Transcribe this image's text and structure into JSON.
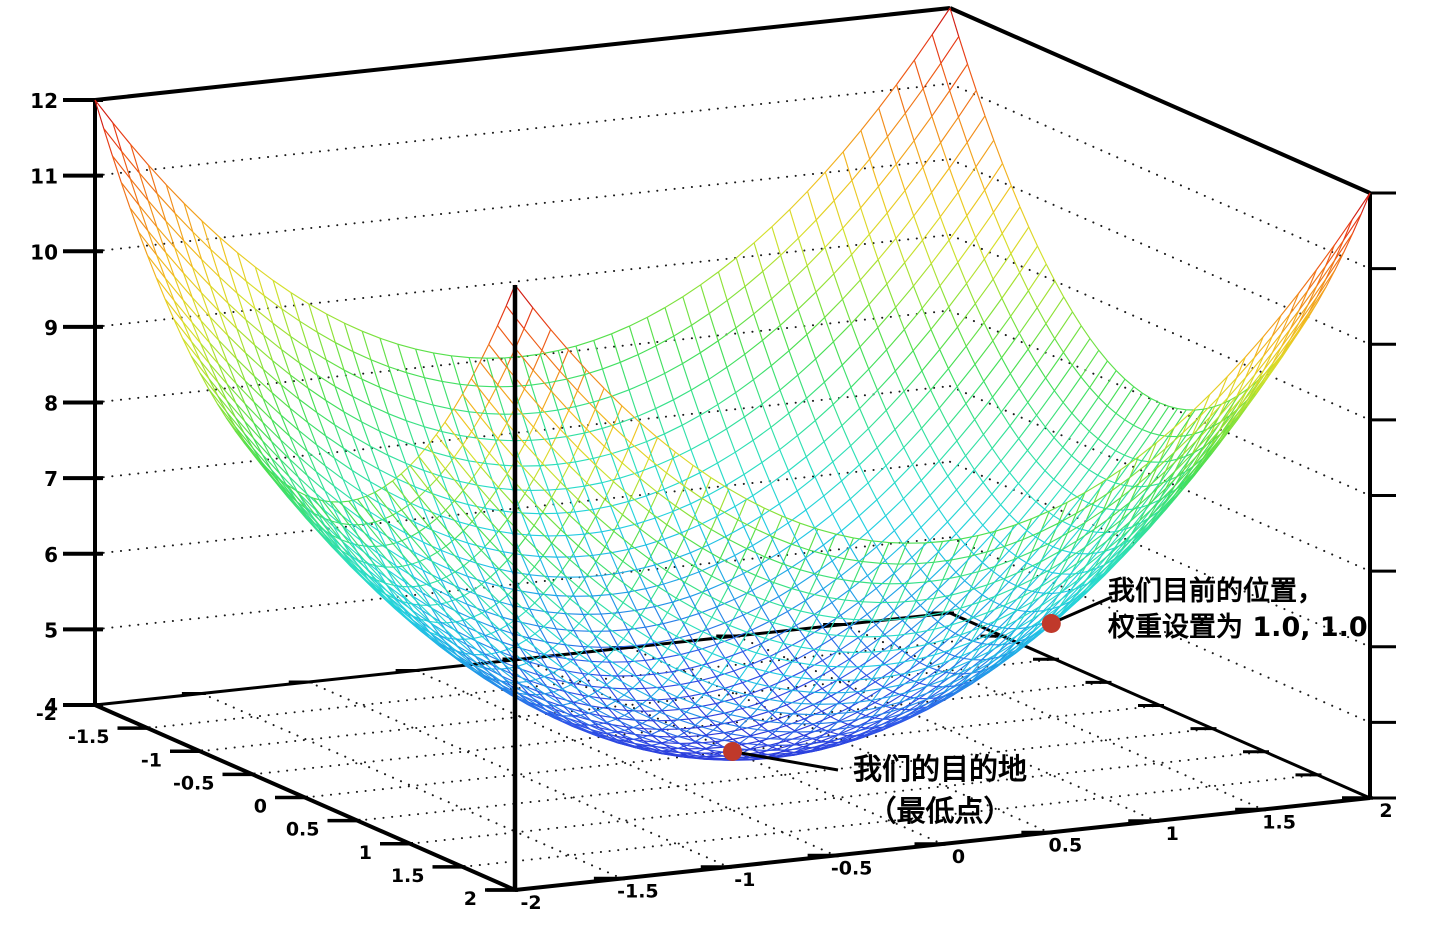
{
  "figure": {
    "background": "#ffffff"
  },
  "chart_data": {
    "type": "3d_surface_wireframe",
    "title": "",
    "z_function": "z = x^2 + y^2 + 4",
    "z_function_coeffs": {
      "x2": 1,
      "y2": 1,
      "c": 4
    },
    "x_range": [
      -2,
      2
    ],
    "y_range": [
      -2,
      2
    ],
    "z_range": [
      4,
      12
    ],
    "x_tick_values": [
      -2,
      -1.5,
      -1,
      -0.5,
      0,
      0.5,
      1,
      1.5,
      2
    ],
    "x_tick_labels": [
      "-2",
      "-1.5",
      "-1",
      "-0.5",
      "0",
      "0.5",
      "1",
      "1.5",
      "2"
    ],
    "y_tick_values": [
      -2,
      -1.5,
      -1,
      -0.5,
      0,
      0.5,
      1,
      1.5,
      2
    ],
    "y_tick_labels": [
      "-2",
      "-1.5",
      "-1",
      "-0.5",
      "0",
      "0.5",
      "1",
      "1.5",
      "2"
    ],
    "z_tick_values": [
      4,
      5,
      6,
      7,
      8,
      9,
      10,
      11,
      12
    ],
    "z_tick_labels": [
      "4",
      "5",
      "6",
      "7",
      "8",
      "9",
      "10",
      "11",
      "12"
    ],
    "mesh_divisions": 48,
    "floor_grid_step": 0.5,
    "grid_style": "dotted",
    "axis_color": "#000000",
    "grid_dot_color": "#1a1a1a",
    "point_color": "#c0392b",
    "colormap_stops": [
      {
        "t": 0.0,
        "color": "#2b35d8"
      },
      {
        "t": 0.08,
        "color": "#2e55e8"
      },
      {
        "t": 0.17,
        "color": "#219fe8"
      },
      {
        "t": 0.26,
        "color": "#22cfe2"
      },
      {
        "t": 0.34,
        "color": "#2cdfc0"
      },
      {
        "t": 0.42,
        "color": "#37e18b"
      },
      {
        "t": 0.5,
        "color": "#47df52"
      },
      {
        "t": 0.58,
        "color": "#8ae238"
      },
      {
        "t": 0.66,
        "color": "#d6e02b"
      },
      {
        "t": 0.74,
        "color": "#f2c120"
      },
      {
        "t": 0.82,
        "color": "#f2921b"
      },
      {
        "t": 0.9,
        "color": "#ee5b16"
      },
      {
        "t": 0.96,
        "color": "#e32a15"
      },
      {
        "t": 1.0,
        "color": "#c31111"
      }
    ],
    "annotations": [
      {
        "id": "current-position",
        "text_lines": [
          "我们目前的位置，",
          "权重设置为 1.0, 1.0"
        ],
        "point": {
          "x": 1.0,
          "y": 1.0,
          "z": 6.0
        }
      },
      {
        "id": "destination",
        "text_lines": [
          "我们的目的地",
          "（最低点）"
        ],
        "point": {
          "x": 0.0,
          "y": 0.0,
          "z": 4.0
        }
      }
    ]
  }
}
